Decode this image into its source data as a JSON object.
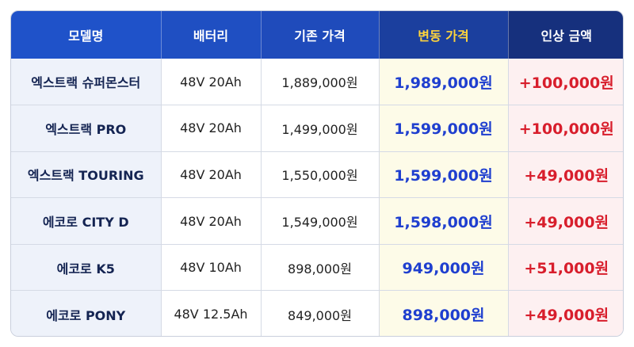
{
  "table": {
    "headers": [
      "모델명",
      "배터리",
      "기존 가격",
      "변동 가격",
      "인상 금액"
    ],
    "rows": [
      {
        "model": "엑스트랙 슈퍼몬스터",
        "battery": "48V 20Ah",
        "old_price": "1,889,000원",
        "new_price": "1,989,000원",
        "increase": "+100,000원"
      },
      {
        "model": "엑스트랙 PRO",
        "battery": "48V 20Ah",
        "old_price": "1,499,000원",
        "new_price": "1,599,000원",
        "increase": "+100,000원"
      },
      {
        "model": "엑스트랙 TOURING",
        "battery": "48V 20Ah",
        "old_price": "1,550,000원",
        "new_price": "1,599,000원",
        "increase": "+49,000원"
      },
      {
        "model": "에코로 CITY D",
        "battery": "48V 20Ah",
        "old_price": "1,549,000원",
        "new_price": "1,598,000원",
        "increase": "+49,000원"
      },
      {
        "model": "에코로 K5",
        "battery": "48V 10Ah",
        "old_price": "898,000원",
        "new_price": "949,000원",
        "increase": "+51,000원"
      },
      {
        "model": "에코로 PONY",
        "battery": "48V 12.5Ah",
        "old_price": "849,000원",
        "new_price": "898,000원",
        "increase": "+49,000원"
      }
    ]
  },
  "colors": {
    "header_blue": "#1f52c9",
    "header_navy": "#16307d",
    "highlight_header_text": "#ffd43b",
    "new_price_text": "#1f3fcf",
    "increase_text": "#d81e2c"
  }
}
